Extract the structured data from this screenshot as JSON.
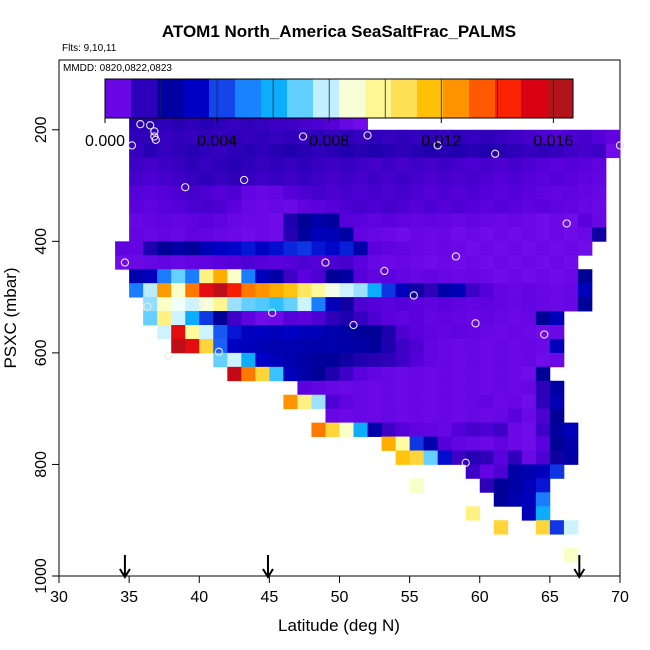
{
  "chart_data": {
    "type": "heatmap",
    "title": "ATOM1 North_America SeaSaltFrac_PALMS",
    "subtitle_flights": "Flts: 9,10,11",
    "subtitle_dates": "MMDD: 0820,0822,0823",
    "xlabel": "Latitude (deg N)",
    "ylabel": "PSXC (mbar)",
    "xlim": [
      30,
      70
    ],
    "ylim": [
      1000,
      100
    ],
    "x_ticks": [
      "30",
      "35",
      "40",
      "45",
      "50",
      "55",
      "60",
      "65",
      "70"
    ],
    "y_ticks": [
      "200",
      "400",
      "600",
      "800",
      "1000"
    ],
    "colorbar": {
      "min": 0.0,
      "max": 0.0167,
      "tick_labels": [
        "0.000",
        "0.004",
        "0.008",
        "0.012",
        "0.016"
      ],
      "tick_values": [
        0.0,
        0.004,
        0.008,
        0.012,
        0.016
      ]
    },
    "cell_size": {
      "lat": 1.0,
      "pressure_mbar": 25
    },
    "rows": [
      {
        "p": 187.5,
        "lat0": 35,
        "vals": [
          0.0015,
          0.0015,
          0.0014,
          0.0015,
          0.0014,
          0.0015,
          0.0014,
          0.0013,
          0.0014,
          0.0013,
          0.0012,
          0.0012,
          0.0011,
          0.001,
          0.0009,
          0.0005,
          0.0003
        ]
      },
      {
        "p": 212.5,
        "lat0": 35,
        "vals": [
          0.0014,
          0.0014,
          0.0013,
          0.0014,
          0.0013,
          0.0014,
          0.0013,
          0.0014,
          0.0013,
          0.0014,
          0.0013,
          0.0014,
          0.0013,
          0.0014,
          0.0013,
          0.0014,
          0.0013,
          0.0014,
          0.0013,
          0.0014,
          0.0013,
          0.0014,
          0.0013,
          0.0014,
          0.0013,
          0.0014,
          0.0013,
          0.0012,
          0.0011,
          0.001,
          0.0009,
          0.001,
          0.0011,
          0.0009,
          0.0007
        ]
      },
      {
        "p": 237.5,
        "lat0": 35,
        "vals": [
          0.0013,
          0.0015,
          0.0013,
          0.0014,
          0.0015,
          0.0014,
          0.0013,
          0.0014,
          0.0015,
          0.0014,
          0.0015,
          0.0016,
          0.0015,
          0.0014,
          0.0015,
          0.0016,
          0.0015,
          0.0016,
          0.0015,
          0.0014,
          0.0015,
          0.0016,
          0.0015,
          0.0016,
          0.0015,
          0.0016,
          0.0015,
          0.0014,
          0.0013,
          0.0014,
          0.0013,
          0.0012,
          0.0011,
          0.0012,
          0.0003
        ]
      },
      {
        "p": 262.5,
        "lat0": 35,
        "vals": [
          0.0012,
          0.0011,
          0.0012,
          0.0013,
          0.0014,
          0.0013,
          0.0014,
          0.0015,
          0.0014,
          0.0013,
          0.0014,
          0.0013,
          0.0014,
          0.0013,
          0.0012,
          0.0013,
          0.0012,
          0.0011,
          0.0012,
          0.0011,
          0.0012,
          0.0011,
          0.0012,
          0.0011,
          0.001,
          0.0011,
          0.001,
          0.0011,
          0.001,
          0.0009,
          0.0008,
          0.0009,
          0.0008,
          0.0007
        ]
      },
      {
        "p": 287.5,
        "lat0": 35,
        "vals": [
          0.0011,
          0.001,
          0.0011,
          0.0012,
          0.0013,
          0.0014,
          0.0013,
          0.0014,
          0.0013,
          0.0012,
          0.0013,
          0.0012,
          0.0013,
          0.0012,
          0.0011,
          0.0012,
          0.0011,
          0.0012,
          0.0011,
          0.0012,
          0.0011,
          0.001,
          0.0011,
          0.001,
          0.0011,
          0.001,
          0.0009,
          0.001,
          0.0009,
          0.0008,
          0.0009,
          0.0008,
          0.0007,
          0.0006
        ]
      },
      {
        "p": 312.5,
        "lat0": 35,
        "vals": [
          0.0009,
          0.0008,
          0.0009,
          0.001,
          0.0011,
          0.001,
          0.0009,
          0.001,
          0.0006,
          0.0005,
          0.0006,
          0.0009,
          0.001,
          0.0011,
          0.001,
          0.0011,
          0.001,
          0.0011,
          0.001,
          0.0011,
          0.001,
          0.0009,
          0.001,
          0.0009,
          0.001,
          0.0009,
          0.0008,
          0.0009,
          0.0008,
          0.0007,
          0.0006,
          0.0007,
          0.0006,
          0.0005
        ]
      },
      {
        "p": 337.5,
        "lat0": 35,
        "vals": [
          0.0008,
          0.0007,
          0.0008,
          0.0009,
          0.001,
          0.0011,
          0.001,
          0.0008,
          0.0005,
          0.0004,
          0.0005,
          0.0004,
          0.0007,
          0.0008,
          0.0009,
          0.001,
          0.0011,
          0.001,
          0.0011,
          0.001,
          0.0009,
          0.001,
          0.0009,
          0.001,
          0.0009,
          0.0008,
          0.0009,
          0.0008,
          0.0007,
          0.0008,
          0.0007,
          0.0006,
          0.0005,
          0.0004
        ]
      },
      {
        "p": 362.5,
        "lat0": 35,
        "vals": [
          0.0005,
          0.0006,
          0.0007,
          0.0006,
          0.0007,
          0.0008,
          0.0007,
          0.0005,
          0.0004,
          0.0004,
          0.0003,
          0.0016,
          0.002,
          0.0025,
          0.0022,
          0.0009,
          0.0008,
          0.0007,
          0.0008,
          0.0007,
          0.0006,
          0.0007,
          0.0006,
          0.0005,
          0.0006,
          0.0005,
          0.0004,
          0.0005,
          0.0004,
          0.0003,
          0.0004,
          0.0003,
          0.0008,
          0.0005
        ]
      },
      {
        "p": 387.5,
        "lat0": 35,
        "vals": [
          0.0006,
          0.0005,
          0.0006,
          0.0005,
          0.0007,
          0.0006,
          0.0005,
          0.0004,
          0.0003,
          0.0004,
          0.0003,
          0.0015,
          0.0022,
          0.003,
          0.0028,
          0.0024,
          0.0006,
          0.0005,
          0.0004,
          0.0003,
          0.0005,
          0.0004,
          0.0005,
          0.0003,
          0.0004,
          0.0003,
          0.0004,
          0.0003,
          0.0004,
          0.0003,
          0.0004,
          0.0003,
          0.0004,
          0.0018
        ]
      },
      {
        "p": 412.5,
        "lat0": 34,
        "vals": [
          0.0007,
          0.0006,
          0.0016,
          0.002,
          0.0024,
          0.002,
          0.0028,
          0.0032,
          0.0034,
          0.0036,
          0.0032,
          0.0035,
          0.0038,
          0.004,
          0.0036,
          0.0034,
          0.0037,
          0.0025,
          0.0008,
          0.0007,
          0.0006,
          0.0005,
          0.0004,
          0.0005,
          0.0004,
          0.0003,
          0.0004,
          0.0003,
          0.0004,
          0.0003,
          0.0004,
          0.0003,
          0.0004,
          0.0003
        ]
      },
      {
        "p": 437.5,
        "lat0": 34,
        "vals": [
          0.0003,
          0.0004,
          0.0005,
          0.0006,
          0.0005,
          0.0006,
          0.0007,
          0.0008,
          0.0009,
          0.001,
          0.0009,
          0.0008,
          0.0009,
          0.001,
          0.0009,
          0.001,
          0.0011,
          0.0008,
          0.0005,
          0.0004,
          0.0005,
          0.0004,
          0.0003,
          0.0004,
          0.0003,
          0.0004,
          0.0003,
          0.0004,
          0.0003,
          0.0004,
          0.0003,
          0.0004,
          0.0003
        ]
      },
      {
        "p": 462.5,
        "lat0": 35,
        "vals": [
          0.0026,
          0.003,
          0.005,
          0.007,
          0.005,
          0.01,
          0.012,
          0.009,
          0.005,
          0.003,
          0.0024,
          0.0012,
          0.0008,
          0.001,
          0.002,
          0.0023,
          0.0009,
          0.0007,
          0.0008,
          0.0006,
          0.0005,
          0.0006,
          0.0005,
          0.0004,
          0.0005,
          0.0004,
          0.0003,
          0.0004,
          0.0003,
          0.0004,
          0.0003,
          0.0004,
          0.002
        ]
      },
      {
        "p": 487.5,
        "lat0": 35,
        "vals": [
          0.005,
          0.0078,
          0.0124,
          0.009,
          0.013,
          0.015,
          0.016,
          0.0145,
          0.013,
          0.0125,
          0.012,
          0.0115,
          0.0105,
          0.0096,
          0.0086,
          0.008,
          0.0075,
          0.006,
          0.004,
          0.003,
          0.0018,
          0.0014,
          0.0025,
          0.0028,
          0.0012,
          0.0009,
          0.0006,
          0.0005,
          0.0006,
          0.0005,
          0.0004,
          0.0005,
          0.003
        ]
      },
      {
        "p": 512.5,
        "lat0": 36,
        "vals": [
          0.0074,
          0.009,
          0.0084,
          0.008,
          0.0088,
          0.0098,
          0.0075,
          0.007,
          0.0068,
          0.0065,
          0.007,
          0.008,
          0.005,
          0.003,
          0.0018,
          0.001,
          0.0009,
          0.0008,
          0.0009,
          0.0008,
          0.0007,
          0.0008,
          0.0007,
          0.0006,
          0.0007,
          0.0006,
          0.0005,
          0.0006,
          0.0005,
          0.0004,
          0.0005,
          0.002
        ]
      },
      {
        "p": 537.5,
        "lat0": 36,
        "vals": [
          0.007,
          0.01,
          0.008,
          0.006,
          0.004,
          0.002,
          0.0012,
          0.0007,
          0.0003,
          0.0004,
          0.0009,
          0.0008,
          0.001,
          0.0014,
          0.0016,
          0.0013,
          0.001,
          0.0008,
          0.0007,
          0.0008,
          0.0006,
          0.0007,
          0.0006,
          0.0005,
          0.0006,
          0.0005,
          0.0004,
          0.0005,
          0.002,
          0.003
        ]
      },
      {
        "p": 562.5,
        "lat0": 37,
        "vals": [
          0.008,
          0.015,
          0.0096,
          0.008,
          0.0044,
          0.0036,
          0.003,
          0.0032,
          0.003,
          0.0032,
          0.003,
          0.0028,
          0.0026,
          0.0024,
          0.0022,
          0.002,
          0.0016,
          0.001,
          0.0008,
          0.0007,
          0.0006,
          0.0007,
          0.0006,
          0.0005,
          0.0004,
          0.0005,
          0.0004,
          0.0003,
          0.0004
        ]
      },
      {
        "p": 587.5,
        "lat0": 38,
        "vals": [
          0.016,
          0.015,
          0.011,
          0.0045,
          0.0032,
          0.003,
          0.0028,
          0.0026,
          0.0027,
          0.0026,
          0.0025,
          0.0026,
          0.0025,
          0.0024,
          0.0022,
          0.0016,
          0.0012,
          0.001,
          0.0006,
          0.0005,
          0.0004,
          0.0005,
          0.0004,
          0.0005,
          0.0004,
          0.0005,
          0.0004,
          0.003
        ]
      },
      {
        "p": 612.5,
        "lat0": 41,
        "vals": [
          0.007,
          0.008,
          0.006,
          0.0033,
          0.003,
          0.0026,
          0.0024,
          0.0022,
          0.002,
          0.0018,
          0.0016,
          0.0015,
          0.0014,
          0.0012,
          0.0009,
          0.0006,
          0.0005,
          0.0004,
          0.0005,
          0.0004,
          0.0005,
          0.0004,
          0.0005,
          0.0003,
          0.0004
        ]
      },
      {
        "p": 637.5,
        "lat0": 42,
        "vals": [
          0.0158,
          0.013,
          0.011,
          0.0066,
          0.003,
          0.0024,
          0.002,
          0.0016,
          0.0012,
          0.0008,
          0.0006,
          0.0005,
          0.0004,
          0.0005,
          0.0004,
          0.0005,
          0.0004,
          0.0005,
          0.0004,
          0.0005,
          0.0004,
          0.0003,
          0.002
        ]
      },
      {
        "p": 662.5,
        "lat0": 47,
        "vals": [
          0.0008,
          0.0006,
          0.0005,
          0.0004,
          0.0005,
          0.0004,
          0.0005,
          0.0004,
          0.0005,
          0.0004,
          0.0005,
          0.0004,
          0.0005,
          0.0004,
          0.0005,
          0.0004,
          0.0005,
          0.0014,
          0.0024
        ]
      },
      {
        "p": 687.5,
        "lat0": 46,
        "vals": [
          0.0125,
          0.01,
          0.0075,
          0.001,
          0.0007,
          0.0005,
          0.0004,
          0.0005,
          0.0004,
          0.0005,
          0.0004,
          0.0005,
          0.0004,
          0.0005,
          0.0006,
          0.0004,
          0.0005,
          0.0003,
          0.0014,
          0.0028
        ]
      },
      {
        "p": 712.5,
        "lat0": 49,
        "vals": [
          0.0005,
          0.0004,
          0.0005,
          0.0004,
          0.0005,
          0.0004,
          0.0005,
          0.0004,
          0.0005,
          0.0004,
          0.0005,
          0.0004,
          0.0005,
          0.0008,
          0.0004,
          0.001,
          0.002
        ]
      },
      {
        "p": 737.5,
        "lat0": 48,
        "vals": [
          0.013,
          0.011,
          0.009,
          0.006,
          0.0025,
          0.0012,
          0.0009,
          0.0007,
          0.0006,
          0.0005,
          0.0009,
          0.0011,
          0.001,
          0.0012,
          0.0004,
          0.0003,
          0.0012,
          0.0022,
          0.003
        ]
      },
      {
        "p": 762.5,
        "lat0": 53,
        "vals": [
          0.012,
          0.0095,
          0.004,
          0.0026,
          0.0009,
          0.0006,
          0.0005,
          0.0004,
          0.0007,
          0.0004,
          0.0003,
          0.0008,
          0.002,
          0.0025
        ]
      },
      {
        "p": 787.5,
        "lat0": 54,
        "vals": [
          0.0115,
          0.011,
          0.007,
          0.0035,
          0.0012,
          0.0015,
          0.0014,
          0.0008,
          0.0014,
          0.0004,
          0.001,
          0.0018,
          0.0024
        ]
      },
      {
        "p": 812.5,
        "lat0": 59,
        "vals": [
          0.0012,
          0.0006,
          0.001,
          0.0024,
          0.0026,
          0.003,
          0.004
        ]
      },
      {
        "p": 837.5,
        "lat0": 60,
        "vals": [
          0.0014,
          0.002,
          0.0024,
          0.003,
          0.0036
        ]
      },
      {
        "p": 862.5,
        "lat0": 61,
        "vals": [
          0.002,
          0.0026,
          0.003,
          0.005
        ]
      },
      {
        "p": 887.5,
        "lat0": 63,
        "vals": [
          0.003,
          0.006
        ]
      },
      {
        "p": 912.5,
        "lat0": 64,
        "vals": [
          0.011,
          0.004,
          0.008
        ]
      },
      {
        "p": 962.5,
        "lat0": 66,
        "vals": [
          0.009
        ]
      }
    ],
    "extra_cells": [
      {
        "lat": 55.5,
        "p": 837.5,
        "v": 0.009
      },
      {
        "lat": 59.5,
        "p": 887.5,
        "v": 0.01
      },
      {
        "lat": 61.5,
        "p": 912.5,
        "v": 0.011
      }
    ],
    "points": [
      {
        "lat": 35.2,
        "p": 228
      },
      {
        "lat": 35.8,
        "p": 190
      },
      {
        "lat": 36.5,
        "p": 192
      },
      {
        "lat": 36.8,
        "p": 203
      },
      {
        "lat": 36.8,
        "p": 212
      },
      {
        "lat": 36.9,
        "p": 218
      },
      {
        "lat": 39.0,
        "p": 303
      },
      {
        "lat": 43.2,
        "p": 290
      },
      {
        "lat": 47.4,
        "p": 212
      },
      {
        "lat": 52.0,
        "p": 210
      },
      {
        "lat": 57.0,
        "p": 228
      },
      {
        "lat": 61.1,
        "p": 243
      },
      {
        "lat": 70.0,
        "p": 228
      },
      {
        "lat": 66.2,
        "p": 368
      },
      {
        "lat": 34.7,
        "p": 438
      },
      {
        "lat": 49.0,
        "p": 438
      },
      {
        "lat": 53.2,
        "p": 453
      },
      {
        "lat": 58.3,
        "p": 427
      },
      {
        "lat": 55.3,
        "p": 497
      },
      {
        "lat": 40.0,
        "p": 513
      },
      {
        "lat": 36.3,
        "p": 517
      },
      {
        "lat": 45.2,
        "p": 528
      },
      {
        "lat": 51.0,
        "p": 550
      },
      {
        "lat": 59.7,
        "p": 547
      },
      {
        "lat": 64.6,
        "p": 567
      },
      {
        "lat": 41.4,
        "p": 598
      },
      {
        "lat": 37.8,
        "p": 605
      },
      {
        "lat": 59.0,
        "p": 797
      }
    ],
    "arrows_lat": [
      34.7,
      44.9,
      67.1
    ]
  }
}
